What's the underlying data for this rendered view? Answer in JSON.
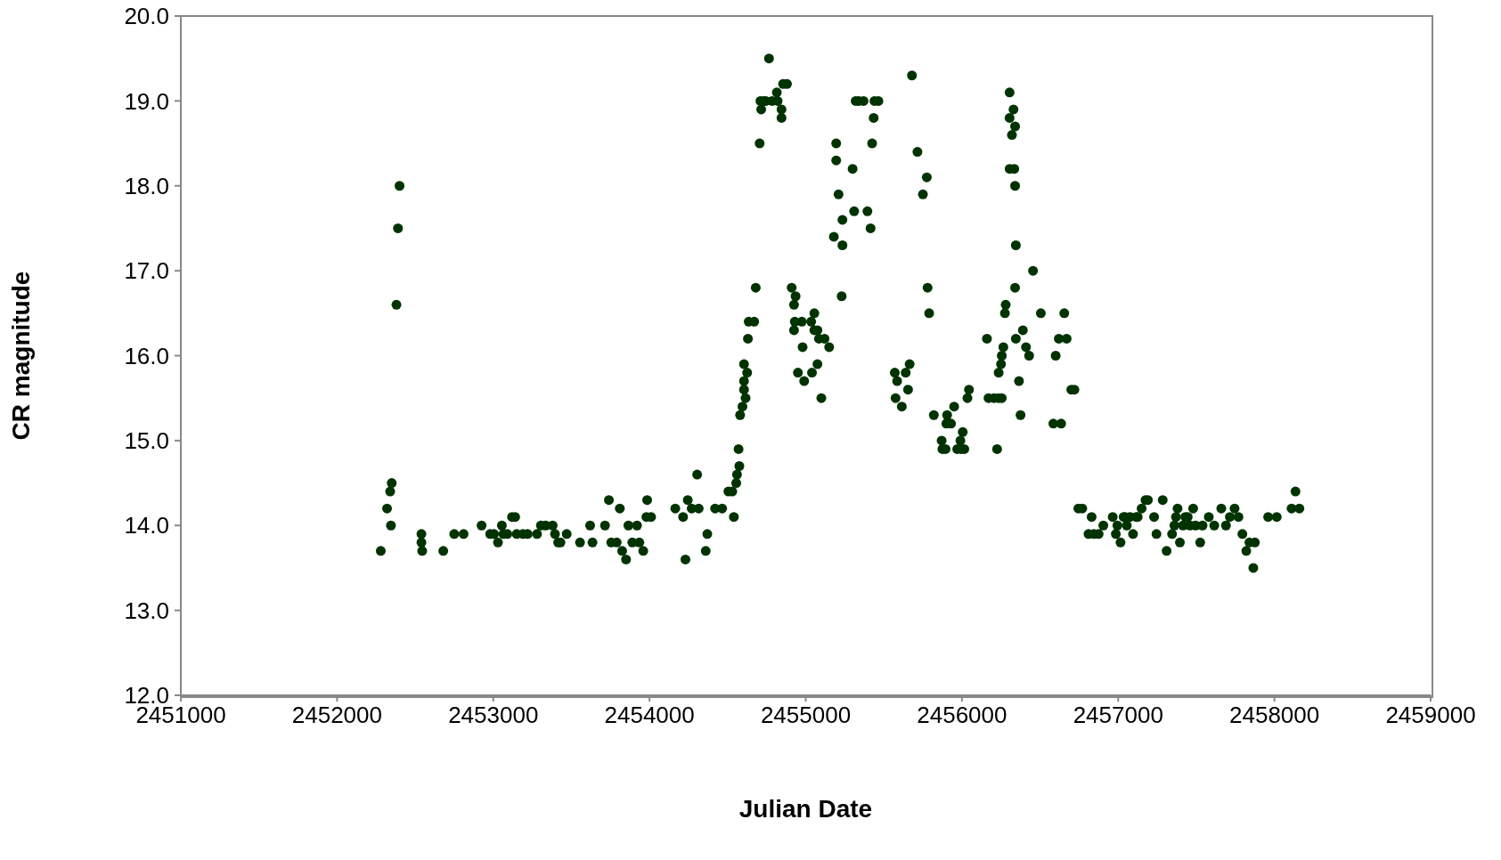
{
  "chart_data": {
    "type": "scatter",
    "xlabel": "Julian Date",
    "ylabel": "CR magnitude",
    "marker": "circle",
    "grid": false,
    "legend": false,
    "xlim": [
      2451000,
      2459000
    ],
    "xticks": [
      2451000,
      2452000,
      2453000,
      2454000,
      2455000,
      2456000,
      2457000,
      2458000,
      2459000
    ],
    "ylim": [
      12,
      20
    ],
    "yticks": [
      {
        "value": 12,
        "label": "12.0"
      },
      {
        "value": 13,
        "label": "13.0"
      },
      {
        "value": 14,
        "label": "14.0"
      },
      {
        "value": 15,
        "label": "15.0"
      },
      {
        "value": 16,
        "label": "16.0"
      },
      {
        "value": 17,
        "label": "17.0"
      },
      {
        "value": 18,
        "label": "18.0"
      },
      {
        "value": 19,
        "label": "19.0"
      },
      {
        "value": 20,
        "label": "20.0"
      }
    ],
    "series": [
      {
        "color": "#003300",
        "x": [
          2452280,
          2452320,
          2452340,
          2452350,
          2452345,
          2452380,
          2452390,
          2452400,
          2452540,
          2452540,
          2452545,
          2452680,
          2452750,
          2452810,
          2452925,
          2452980,
          2453005,
          2453030,
          2453055,
          2453065,
          2453090,
          2453120,
          2453140,
          2453150,
          2453190,
          2453220,
          2453280,
          2453305,
          2453335,
          2453380,
          2453395,
          2453415,
          2453430,
          2453470,
          2453555,
          2453620,
          2453635,
          2453715,
          2453740,
          2453755,
          2453790,
          2453810,
          2453825,
          2453850,
          2453865,
          2453890,
          2453920,
          2453935,
          2453960,
          2453985,
          2453980,
          2454010,
          2454165,
          2454215,
          2454230,
          2454245,
          2454270,
          2454305,
          2454315,
          2454360,
          2454370,
          2454420,
          2454465,
          2454505,
          2454530,
          2454540,
          2454555,
          2454560,
          2454575,
          2454570,
          2454580,
          2454595,
          2454605,
          2454615,
          2454605,
          2454625,
          2454605,
          2454630,
          2454635,
          2454670,
          2454680,
          2454705,
          2454715,
          2454710,
          2454730,
          2454745,
          2454765,
          2454785,
          2454815,
          2454820,
          2454845,
          2454845,
          2454855,
          2454880,
          2454910,
          2454925,
          2454935,
          2454925,
          2454930,
          2454950,
          2454975,
          2454980,
          2454990,
          2455035,
          2455040,
          2455055,
          2455055,
          2455075,
          2455075,
          2455085,
          2455100,
          2455120,
          2455150,
          2455180,
          2455195,
          2455195,
          2455210,
          2455235,
          2455235,
          2455230,
          2455300,
          2455310,
          2455320,
          2455340,
          2455370,
          2455395,
          2455415,
          2455425,
          2455435,
          2455440,
          2455465,
          2455570,
          2455575,
          2455585,
          2455615,
          2455640,
          2455655,
          2455665,
          2455680,
          2455715,
          2455750,
          2455775,
          2455780,
          2455790,
          2455820,
          2455870,
          2455875,
          2455895,
          2455900,
          2455905,
          2455930,
          2455950,
          2455970,
          2455990,
          2455995,
          2456005,
          2456015,
          2456035,
          2456045,
          2456160,
          2456170,
          2456205,
          2456225,
          2456235,
          2456235,
          2456250,
          2456255,
          2456255,
          2456265,
          2456275,
          2456280,
          2456305,
          2456305,
          2456305,
          2456320,
          2456330,
          2456335,
          2456340,
          2456340,
          2456345,
          2456340,
          2456345,
          2456365,
          2456375,
          2456390,
          2456410,
          2456430,
          2456455,
          2456505,
          2456585,
          2456600,
          2456620,
          2456635,
          2456655,
          2456670,
          2456700,
          2456720,
          2456745,
          2456770,
          2456810,
          2456830,
          2456845,
          2456875,
          2456905,
          2456965,
          2456985,
          2456995,
          2457015,
          2457035,
          2457045,
          2457055,
          2457075,
          2457095,
          2457115,
          2457125,
          2457150,
          2457175,
          2457190,
          2457230,
          2457245,
          2457285,
          2457310,
          2457345,
          2457360,
          2457370,
          2457380,
          2457395,
          2457415,
          2457430,
          2457445,
          2457460,
          2457480,
          2457495,
          2457525,
          2457540,
          2457580,
          2457615,
          2457660,
          2457690,
          2457715,
          2457745,
          2457770,
          2457795,
          2457820,
          2457840,
          2457865,
          2457875,
          2457960,
          2458015,
          2458110,
          2458135,
          2458160
        ],
        "values": [
          13.7,
          14.2,
          14.4,
          14.5,
          14.0,
          16.6,
          17.5,
          18.0,
          13.9,
          13.8,
          13.7,
          13.7,
          13.9,
          13.9,
          14.0,
          13.9,
          13.9,
          13.8,
          14.0,
          13.9,
          13.9,
          14.1,
          14.1,
          13.9,
          13.9,
          13.9,
          13.9,
          14.0,
          14.0,
          14.0,
          13.9,
          13.8,
          13.8,
          13.9,
          13.8,
          14.0,
          13.8,
          14.0,
          14.3,
          13.8,
          13.8,
          14.2,
          13.7,
          13.6,
          14.0,
          13.8,
          14.0,
          13.8,
          13.7,
          14.3,
          14.1,
          14.1,
          14.2,
          14.1,
          13.6,
          14.3,
          14.2,
          14.6,
          14.2,
          13.7,
          13.9,
          14.2,
          14.2,
          14.4,
          14.4,
          14.1,
          14.5,
          14.6,
          14.7,
          14.9,
          15.3,
          15.4,
          15.6,
          15.5,
          15.7,
          15.8,
          15.9,
          16.2,
          16.4,
          16.4,
          16.8,
          18.5,
          18.9,
          19.0,
          19.0,
          19.0,
          19.5,
          19.0,
          19.1,
          19.0,
          18.9,
          18.8,
          19.2,
          19.2,
          16.8,
          16.6,
          16.7,
          16.3,
          16.4,
          15.8,
          16.4,
          16.1,
          15.7,
          16.4,
          15.8,
          16.3,
          16.5,
          16.3,
          15.9,
          16.2,
          15.5,
          16.2,
          16.1,
          17.4,
          18.5,
          18.3,
          17.9,
          17.6,
          17.3,
          16.7,
          18.2,
          17.7,
          19.0,
          19.0,
          19.0,
          17.7,
          17.5,
          18.5,
          18.8,
          19.0,
          19.0,
          15.8,
          15.5,
          15.7,
          15.4,
          15.8,
          15.6,
          15.9,
          19.3,
          18.4,
          17.9,
          18.1,
          16.8,
          16.5,
          15.3,
          15.0,
          14.9,
          14.9,
          15.2,
          15.3,
          15.2,
          15.4,
          14.9,
          15.0,
          14.9,
          15.1,
          14.9,
          15.5,
          15.6,
          16.2,
          15.5,
          15.5,
          14.9,
          15.8,
          15.5,
          15.9,
          16.0,
          15.5,
          16.1,
          16.5,
          16.6,
          18.8,
          19.1,
          18.2,
          18.6,
          18.9,
          18.2,
          18.7,
          18.0,
          17.3,
          16.8,
          16.2,
          15.7,
          15.3,
          16.3,
          16.1,
          16.0,
          17.0,
          16.5,
          15.2,
          16.0,
          16.2,
          15.2,
          16.5,
          16.2,
          15.6,
          15.6,
          14.2,
          14.2,
          13.9,
          14.1,
          13.9,
          13.9,
          14.0,
          14.1,
          13.9,
          14.0,
          13.8,
          14.1,
          14.1,
          14.0,
          14.1,
          13.9,
          14.1,
          14.1,
          14.2,
          14.3,
          14.3,
          14.1,
          13.9,
          14.3,
          13.7,
          13.9,
          14.0,
          14.1,
          14.2,
          13.8,
          14.0,
          14.1,
          14.1,
          14.0,
          14.2,
          14.0,
          13.8,
          14.0,
          14.1,
          14.0,
          14.2,
          14.0,
          14.1,
          14.2,
          14.1,
          13.9,
          13.7,
          13.8,
          13.5,
          13.8,
          14.1,
          14.1,
          14.2,
          14.4,
          14.2
        ]
      }
    ]
  }
}
